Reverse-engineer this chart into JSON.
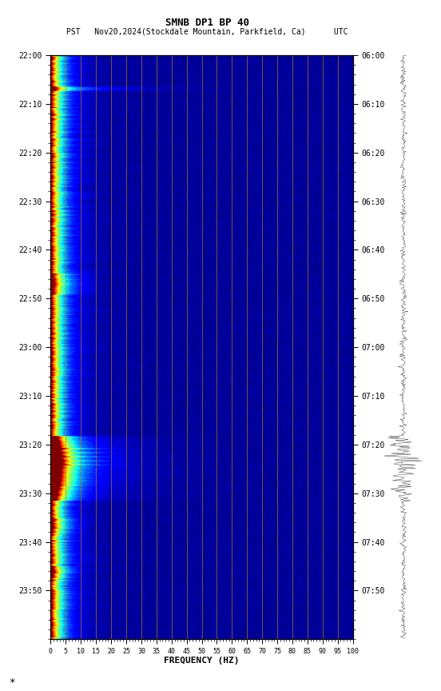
{
  "title1": "SMNB DP1 BP 40",
  "title2": "PST   Nov20,2024(Stockdale Mountain, Parkfield, Ca)      UTC",
  "xlabel": "FREQUENCY (HZ)",
  "freq_min": 0,
  "freq_max": 100,
  "pst_labels": [
    "22:00",
    "22:10",
    "22:20",
    "22:30",
    "22:40",
    "22:50",
    "23:00",
    "23:10",
    "23:20",
    "23:30",
    "23:40",
    "23:50"
  ],
  "utc_labels": [
    "06:00",
    "06:10",
    "06:20",
    "06:30",
    "06:40",
    "06:50",
    "07:00",
    "07:10",
    "07:20",
    "07:30",
    "07:40",
    "07:50"
  ],
  "n_time": 720,
  "n_freq": 500,
  "bg_color": "#ffffff",
  "colormap": "jet",
  "fig_width": 5.52,
  "fig_height": 8.64,
  "grid_color": "#b08010",
  "grid_alpha": 0.8
}
